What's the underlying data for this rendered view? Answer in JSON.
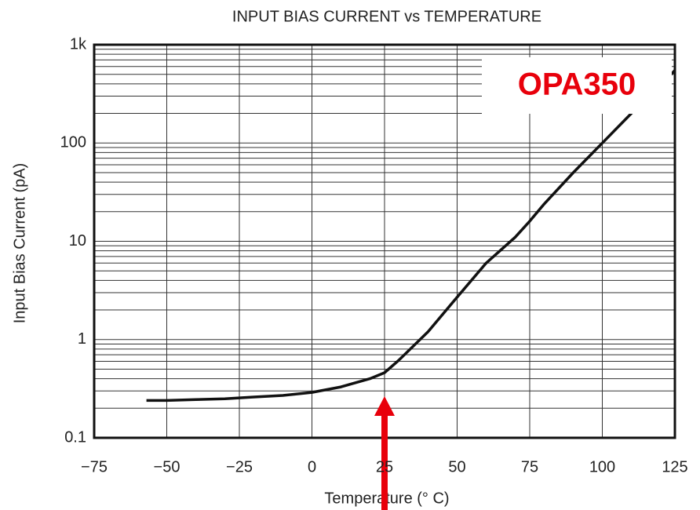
{
  "chart_data": {
    "type": "line",
    "title": "INPUT BIAS CURRENT  vs TEMPERATURE",
    "x_label": "Temperature (° C)",
    "y_label": "Input Bias Current (pA)",
    "annotation": "OPA350",
    "log_y": true,
    "grid": true,
    "xlim": [
      -75,
      125
    ],
    "ylim": [
      0.1,
      1000
    ],
    "xticks": [
      {
        "value": -75,
        "label": "−75"
      },
      {
        "value": -50,
        "label": "−50"
      },
      {
        "value": -25,
        "label": "−25"
      },
      0,
      25,
      50,
      75,
      100,
      125
    ],
    "yticks": [
      0.1,
      1,
      10,
      100,
      {
        "value": 1000,
        "label": "1k"
      }
    ],
    "y_minor_ticks": [
      0.2,
      0.3,
      0.4,
      0.5,
      0.6,
      0.7,
      0.8,
      0.9,
      2,
      3,
      4,
      5,
      6,
      7,
      8,
      9,
      20,
      30,
      40,
      50,
      60,
      70,
      80,
      90,
      200,
      300,
      400,
      500,
      600,
      700,
      800,
      900
    ],
    "x": [
      -57,
      -50,
      -40,
      -30,
      -20,
      -10,
      0,
      10,
      20,
      25,
      30,
      40,
      50,
      60,
      70,
      75,
      80,
      90,
      100,
      110,
      120,
      125
    ],
    "series": [
      {
        "name": "OPA350",
        "color": "#111111",
        "values": [
          0.24,
          0.24,
          0.245,
          0.25,
          0.26,
          0.27,
          0.29,
          0.33,
          0.4,
          0.46,
          0.62,
          1.2,
          2.7,
          6,
          11,
          16,
          24,
          50,
          100,
          200,
          380,
          550
        ]
      }
    ]
  }
}
